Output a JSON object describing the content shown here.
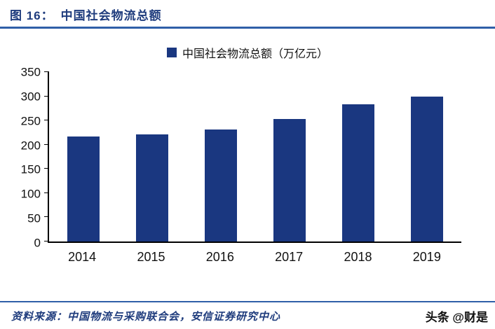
{
  "header": {
    "figure_label": "图 16：",
    "title": "中国社会物流总额"
  },
  "legend": {
    "label": "中国社会物流总额（万亿元）"
  },
  "chart_data": {
    "type": "bar",
    "title": "中国社会物流总额",
    "legend": [
      "中国社会物流总额（万亿元）"
    ],
    "legend_position": "top-center",
    "categories": [
      "2014",
      "2015",
      "2016",
      "2017",
      "2018",
      "2019"
    ],
    "values": [
      217,
      222,
      231,
      253,
      283,
      300
    ],
    "xlabel": "",
    "ylabel": "",
    "ylim": [
      0,
      350
    ],
    "yticks": [
      0,
      50,
      100,
      150,
      200,
      250,
      300,
      350
    ],
    "grid": false,
    "bar_color": "#1a3780"
  },
  "footer": {
    "source": "资料来源：中国物流与采购联合会，安信证券研究中心",
    "watermark": "头条 @财是"
  },
  "colors": {
    "accent_rule_blue": "#2f5fa8",
    "title_blue": "#1f3c7d",
    "bar_navy": "#1a3780",
    "axis_black": "#000000"
  }
}
